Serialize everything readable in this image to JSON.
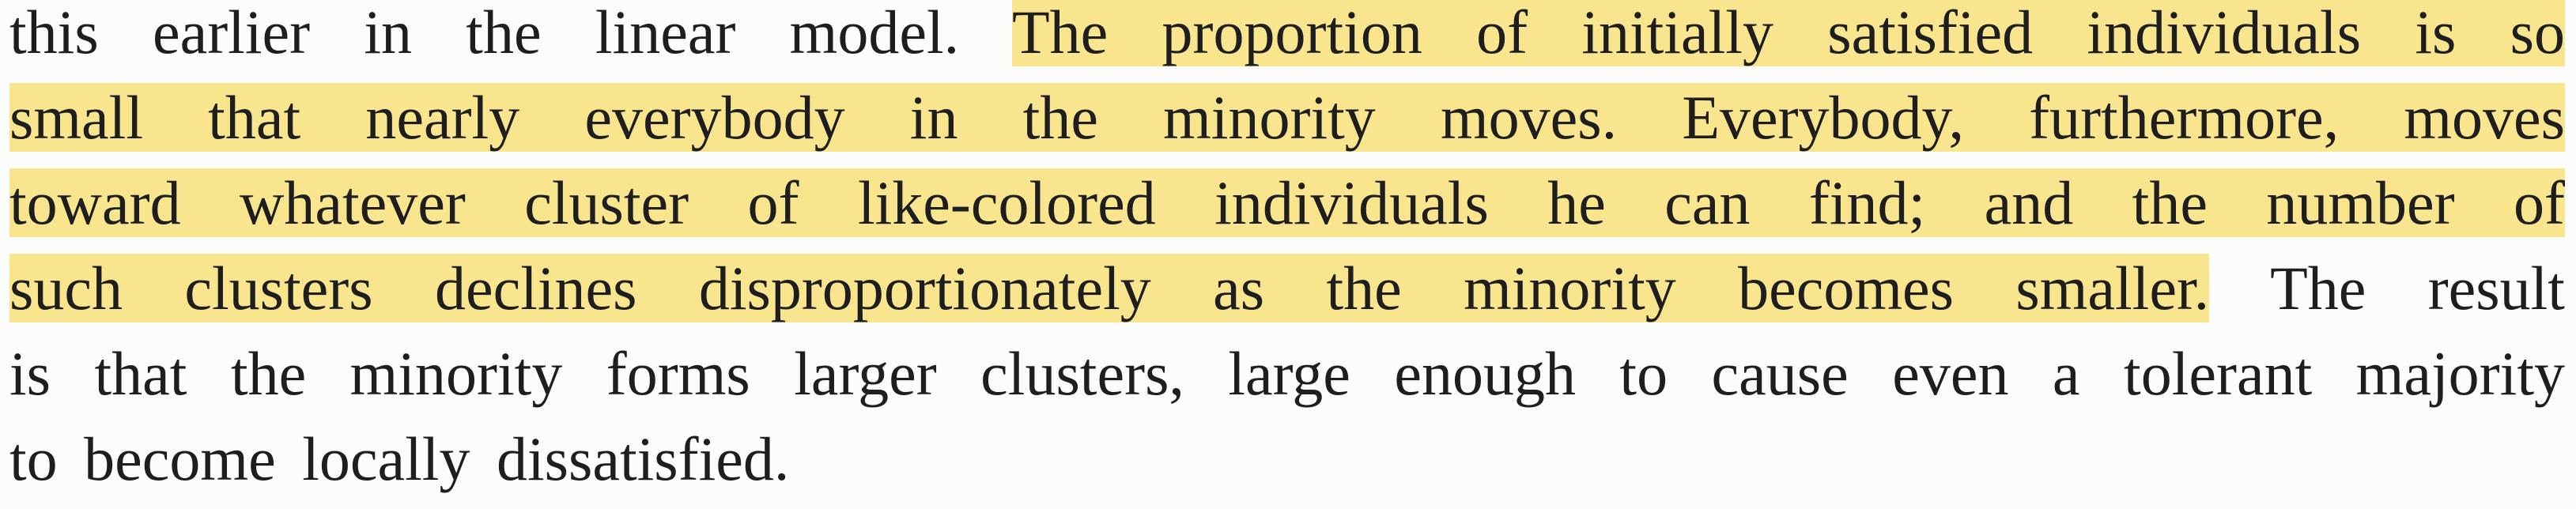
{
  "paragraph": {
    "lines": [
      {
        "plain": "this earlier in the linear model. ",
        "highlight": "The proportion of initially satisfied individuals is so"
      },
      {
        "highlight": "small that nearly everybody in the minority moves. Everybody, furthermore, moves"
      },
      {
        "highlight": "toward whatever cluster of like-colored individuals he can find; and the number of"
      },
      {
        "highlight": "such clusters declines disproportionately as the minority becomes smaller.",
        "plain": " The result"
      },
      {
        "plain": "is that the minority forms larger clusters, large enough to cause even a tolerant majority"
      },
      {
        "plain": "to become locally dissatisfied."
      }
    ],
    "highlight_color": "#f8e58e",
    "text_color": "#1e1e1e",
    "background_color": "#fcfcfb"
  }
}
